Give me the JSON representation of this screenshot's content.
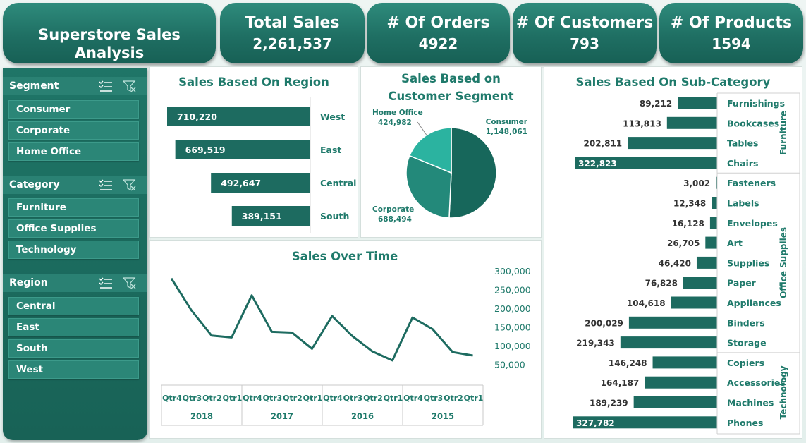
{
  "dashboard_title": "Superstore Sales Analysis",
  "kpis": [
    {
      "title": "Total Sales",
      "value": "2,261,537"
    },
    {
      "title": "# Of Orders",
      "value": "4922"
    },
    {
      "title": "# Of Customers",
      "value": "793"
    },
    {
      "title": "# Of Products",
      "value": "1594"
    }
  ],
  "slicers": {
    "segment": {
      "label": "Segment",
      "items": [
        "Consumer",
        "Corporate",
        "Home Office"
      ]
    },
    "category": {
      "label": "Category",
      "items": [
        "Furniture",
        "Office Supplies",
        "Technology"
      ]
    },
    "region": {
      "label": "Region",
      "items": [
        "Central",
        "East",
        "South",
        "West"
      ]
    }
  },
  "colors": {
    "accent": "#1f6f63",
    "bar": "#1d6b60",
    "title": "#1f7a6b",
    "pie_consumer": "#17675b",
    "pie_corporate": "#23897a",
    "pie_home_office": "#2bb3a0"
  },
  "icons": [
    "multi-select-icon",
    "clear-filter-icon"
  ],
  "chart_data": [
    {
      "type": "bar",
      "title": "Sales Based On Region",
      "categories": [
        "West",
        "East",
        "Central",
        "South"
      ],
      "values": [
        710220,
        669519,
        492647,
        389151
      ],
      "labels": [
        "710,220",
        "669,519",
        "492,647",
        "389,151"
      ],
      "orientation": "horizontal-reversed"
    },
    {
      "type": "pie",
      "title": "Sales Based on Customer Segment",
      "title_lines": [
        "Sales Based on",
        "Customer Segment"
      ],
      "categories": [
        "Consumer",
        "Corporate",
        "Home Office"
      ],
      "values": [
        1148061,
        688494,
        424982
      ],
      "labels": [
        "1,148,061",
        "688,494",
        "424,982"
      ]
    },
    {
      "type": "line",
      "title": "Sales Over Time",
      "x": [
        "Qtr4",
        "Qtr3",
        "Qtr2",
        "Qtr1",
        "Qtr4",
        "Qtr3",
        "Qtr2",
        "Qtr1",
        "Qtr4",
        "Qtr3",
        "Qtr2",
        "Qtr1",
        "Qtr4",
        "Qtr3",
        "Qtr2",
        "Qtr1"
      ],
      "groups": [
        "2018",
        "2017",
        "2016",
        "2015"
      ],
      "values": [
        280000,
        195000,
        128000,
        123000,
        235000,
        138000,
        136000,
        93000,
        180000,
        127000,
        86000,
        62000,
        176000,
        145000,
        84000,
        75000
      ],
      "y_ticks": [
        "300,000",
        "250,000",
        "200,000",
        "150,000",
        "100,000",
        "50,000",
        "-"
      ],
      "ylim": [
        0,
        300000
      ],
      "yaxis_side": "right"
    },
    {
      "type": "bar",
      "title": "Sales Based On Sub-Category",
      "orientation": "horizontal-reversed",
      "groups": [
        {
          "name": "Furniture",
          "categories": [
            "Furnishings",
            "Bookcases",
            "Tables",
            "Chairs"
          ],
          "values": [
            89212,
            113813,
            202811,
            322823
          ],
          "labels": [
            "89,212",
            "113,813",
            "202,811",
            "322,823"
          ]
        },
        {
          "name": "Office Supplies",
          "categories": [
            "Fasteners",
            "Labels",
            "Envelopes",
            "Art",
            "Supplies",
            "Paper",
            "Appliances",
            "Binders",
            "Storage"
          ],
          "values": [
            3002,
            12348,
            16128,
            26705,
            46420,
            76828,
            104618,
            200029,
            219343
          ],
          "labels": [
            "3,002",
            "12,348",
            "16,128",
            "26,705",
            "46,420",
            "76,828",
            "104,618",
            "200,029",
            "219,343"
          ]
        },
        {
          "name": "Technology",
          "categories": [
            "Copiers",
            "Accessories",
            "Machines",
            "Phones"
          ],
          "values": [
            146248,
            164187,
            189239,
            327782
          ],
          "labels": [
            "146,248",
            "164,187",
            "189,239",
            "327,782"
          ]
        }
      ]
    }
  ]
}
